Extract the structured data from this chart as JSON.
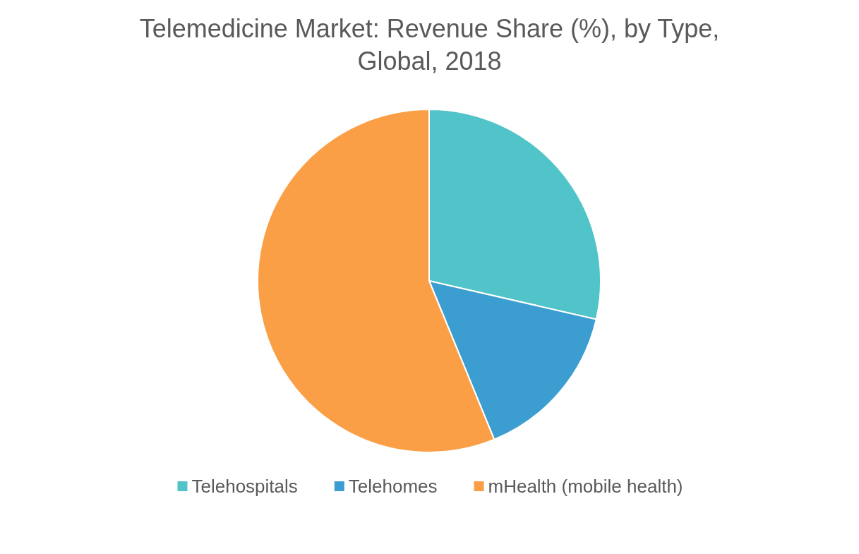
{
  "chart_data": {
    "type": "pie",
    "title": "Telemedicine Market: Revenue Share (%), by Type,\nGlobal, 2018",
    "categories": [
      "Telehospitals",
      "Telehomes",
      "mHealth (mobile health)"
    ],
    "values": [
      28.6,
      15.2,
      56.2
    ],
    "colors": [
      "#50c4c8",
      "#3c9dd0",
      "#fb9f47"
    ],
    "legend": "bottom"
  }
}
